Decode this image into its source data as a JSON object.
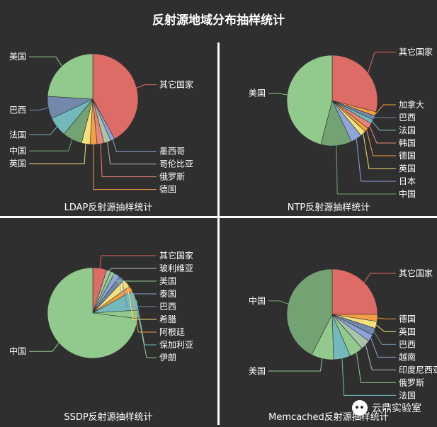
{
  "title": "反射源地域分布抽样统计",
  "watermark": "云鼎实验室",
  "chart_data": [
    {
      "type": "pie",
      "title": "LDAP反射源抽样统计",
      "slices": [
        {
          "label": "其它国家",
          "value": 42,
          "color": "#dd6b66"
        },
        {
          "label": "墨西哥",
          "value": 1.5,
          "color": "#8fa5d9"
        },
        {
          "label": "哥伦比亚",
          "value": 2.5,
          "color": "#a9c4a8"
        },
        {
          "label": "俄罗斯",
          "value": 2.5,
          "color": "#e8857a"
        },
        {
          "label": "德国",
          "value": 2.5,
          "color": "#f49f42"
        },
        {
          "label": "英国",
          "value": 3,
          "color": "#f3e17d"
        },
        {
          "label": "中国",
          "value": 7,
          "color": "#73a373"
        },
        {
          "label": "法国",
          "value": 7,
          "color": "#73b9bc"
        },
        {
          "label": "巴西",
          "value": 8,
          "color": "#7289ab"
        },
        {
          "label": "美国",
          "value": 24,
          "color": "#91ca8c"
        }
      ]
    },
    {
      "type": "pie",
      "title": "NTP反射源抽样统计",
      "slices": [
        {
          "label": "其它国家",
          "value": 29,
          "color": "#dd6b66"
        },
        {
          "label": "加拿大",
          "value": 1.5,
          "color": "#f49f42"
        },
        {
          "label": "巴西",
          "value": 1.5,
          "color": "#7289ab"
        },
        {
          "label": "法国",
          "value": 1.5,
          "color": "#73b9bc"
        },
        {
          "label": "韩国",
          "value": 2,
          "color": "#e8857a"
        },
        {
          "label": "德国",
          "value": 1.5,
          "color": "#f49f42"
        },
        {
          "label": "英国",
          "value": 2,
          "color": "#f3e17d"
        },
        {
          "label": "日本",
          "value": 4,
          "color": "#8fa5d9"
        },
        {
          "label": "中国",
          "value": 11,
          "color": "#73a373"
        },
        {
          "label": "美国",
          "value": 46,
          "color": "#91ca8c"
        }
      ]
    },
    {
      "type": "pie",
      "title": "SSDP反射源抽样统计",
      "slices": [
        {
          "label": "其它国家",
          "value": 5,
          "color": "#dd6b66"
        },
        {
          "label": "玻利维亚",
          "value": 1.5,
          "color": "#a9c4a8"
        },
        {
          "label": "美国",
          "value": 1.5,
          "color": "#91ca8c"
        },
        {
          "label": "泰国",
          "value": 2,
          "color": "#8fa5d9"
        },
        {
          "label": "巴西",
          "value": 2,
          "color": "#7289ab"
        },
        {
          "label": "希腊",
          "value": 3,
          "color": "#f3e17d"
        },
        {
          "label": "阿根廷",
          "value": 2,
          "color": "#f49f42"
        },
        {
          "label": "保加利亚",
          "value": 7,
          "color": "#73b9bc"
        },
        {
          "label": "伊朗",
          "value": 3,
          "color": "#91ca8c"
        },
        {
          "label": "中国",
          "value": 73,
          "color": "#91ca8c"
        }
      ]
    },
    {
      "type": "pie",
      "title": "Memcached反射源抽样统计",
      "slices": [
        {
          "label": "其它国家",
          "value": 25,
          "color": "#dd6b66"
        },
        {
          "label": "德国",
          "value": 2.5,
          "color": "#f49f42"
        },
        {
          "label": "英国",
          "value": 2.5,
          "color": "#f3e17d"
        },
        {
          "label": "巴西",
          "value": 2.5,
          "color": "#7289ab"
        },
        {
          "label": "越南",
          "value": 2.5,
          "color": "#8fa5d9"
        },
        {
          "label": "印度尼西亚",
          "value": 3.5,
          "color": "#a9c4a8"
        },
        {
          "label": "俄罗斯",
          "value": 5,
          "color": "#91ca8c"
        },
        {
          "label": "法国",
          "value": 6,
          "color": "#73b9bc"
        },
        {
          "label": "美国",
          "value": 8,
          "color": "#91ca8c"
        },
        {
          "label": "中国",
          "value": 42.5,
          "color": "#73a373"
        }
      ]
    }
  ]
}
